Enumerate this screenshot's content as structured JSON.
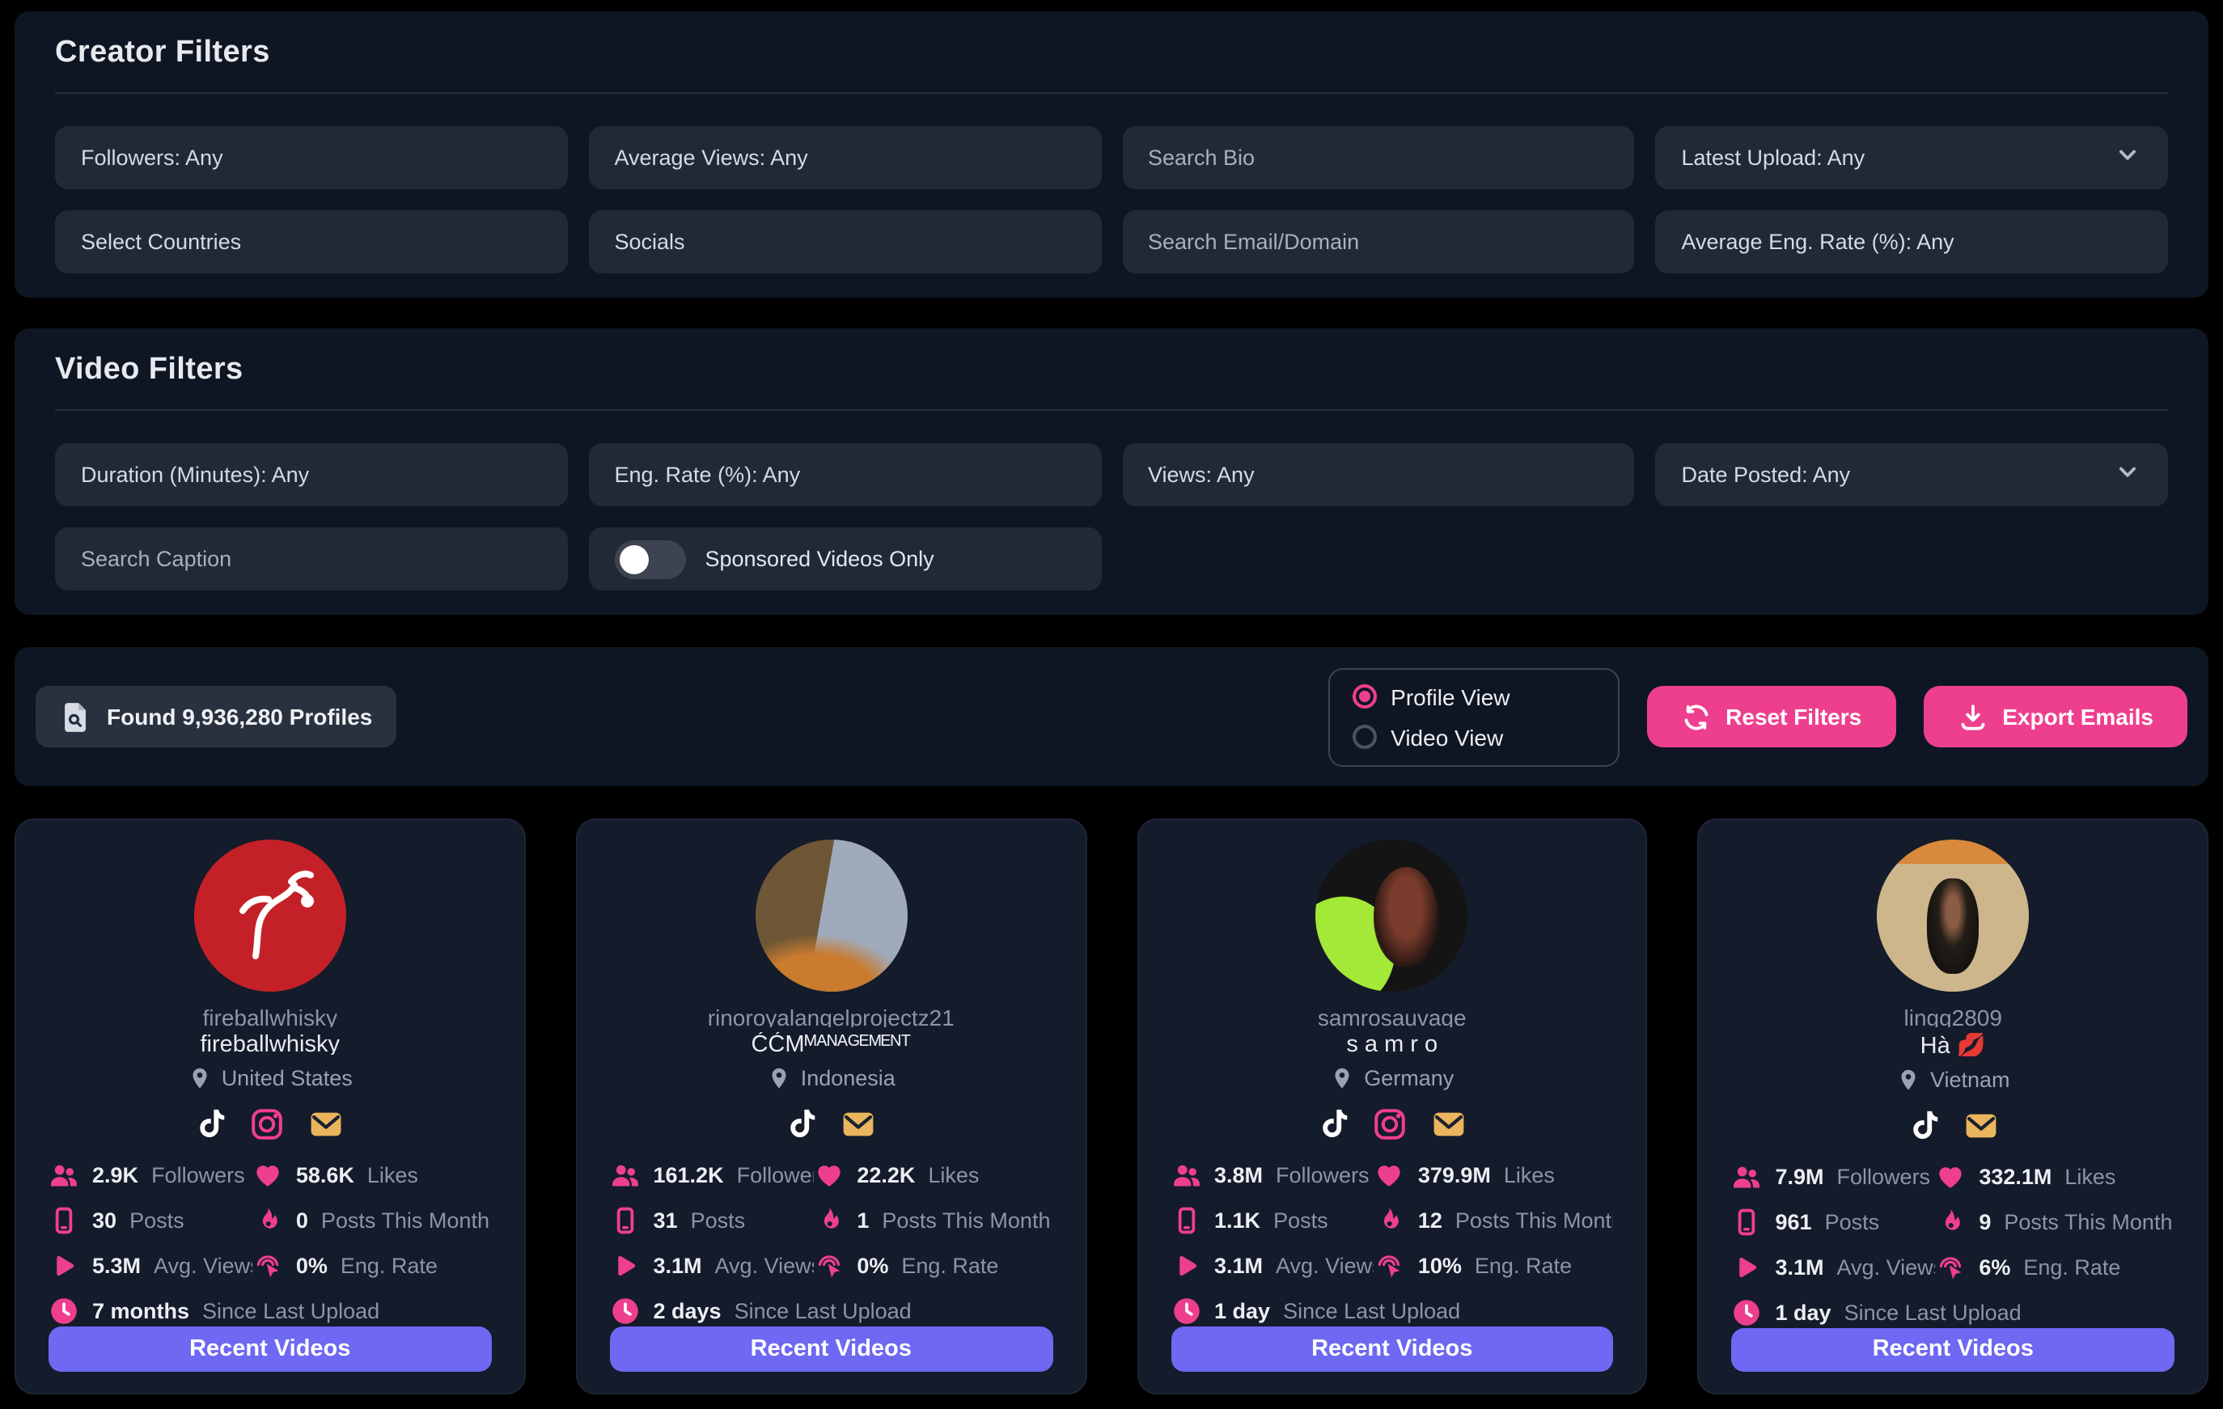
{
  "creator_filters": {
    "title": "Creator Filters",
    "fields": {
      "followers": "Followers: Any",
      "average_views": "Average Views: Any",
      "search_bio": "Search Bio",
      "latest_upload": "Latest Upload: Any",
      "select_countries": "Select Countries",
      "socials": "Socials",
      "search_email": "Search Email/Domain",
      "avg_eng_rate": "Average Eng. Rate (%): Any"
    }
  },
  "video_filters": {
    "title": "Video Filters",
    "fields": {
      "duration": "Duration (Minutes): Any",
      "eng_rate": "Eng. Rate (%): Any",
      "views": "Views: Any",
      "date_posted": "Date Posted: Any",
      "search_caption": "Search Caption",
      "sponsored_only": "Sponsored Videos Only"
    },
    "sponsored_toggle_on": false
  },
  "results_bar": {
    "found_text": "Found 9,936,280 Profiles",
    "profile_view": "Profile View",
    "video_view": "Video View",
    "selected_view": "Profile View",
    "reset_button": "Reset Filters",
    "export_button": "Export Emails"
  },
  "stat_labels": {
    "followers": "Followers",
    "likes": "Likes",
    "posts": "Posts",
    "posts_this_month": "Posts This Month",
    "avg_views": "Avg. Views",
    "eng_rate": "Eng. Rate",
    "since_last_upload": "Since Last Upload"
  },
  "recent_videos_label": "Recent Videos",
  "cards": [
    {
      "username": "fireballwhisky",
      "display_name": "fireballwhisky",
      "country": "United States",
      "socials": [
        "tiktok",
        "instagram",
        "email"
      ],
      "followers": "2.9K",
      "likes": "58.6K",
      "posts": "30",
      "posts_this_month": "0",
      "avg_views": "5.3M",
      "eng_rate": "0%",
      "since_last_upload": "7 months"
    },
    {
      "username": "rinoroyalangelprojectz21",
      "display_name": "ĆĆMᴹᴬᴺᴬᴳᴱᴹᴱᴺᵀ",
      "country": "Indonesia",
      "socials": [
        "tiktok",
        "email"
      ],
      "followers": "161.2K",
      "likes": "22.2K",
      "posts": "31",
      "posts_this_month": "1",
      "avg_views": "3.1M",
      "eng_rate": "0%",
      "since_last_upload": "2 days"
    },
    {
      "username": "samrosauvage",
      "display_name": "s a m r o",
      "country": "Germany",
      "socials": [
        "tiktok",
        "instagram",
        "email"
      ],
      "followers": "3.8M",
      "likes": "379.9M",
      "posts": "1.1K",
      "posts_this_month": "12",
      "avg_views": "3.1M",
      "eng_rate": "10%",
      "since_last_upload": "1 day"
    },
    {
      "username": "lingg2809",
      "display_name": "Hà 💋",
      "country": "Vietnam",
      "socials": [
        "tiktok",
        "email"
      ],
      "followers": "7.9M",
      "likes": "332.1M",
      "posts": "961",
      "posts_this_month": "9",
      "avg_views": "3.1M",
      "eng_rate": "6%",
      "since_last_upload": "1 day"
    }
  ],
  "icons": {
    "found_chip": "file-search-icon",
    "reset": "refresh-icon",
    "export": "download-icon",
    "dropdowns": "chevron-down-icon"
  },
  "colors": {
    "accent_pink": "#ee3f8e",
    "accent_purple": "#6e68f2",
    "email_yellow": "#eab55c",
    "panel_bg": "#0f1623",
    "card_bg": "#141b2a",
    "input_bg": "#212937",
    "page_bg": "#000000"
  }
}
